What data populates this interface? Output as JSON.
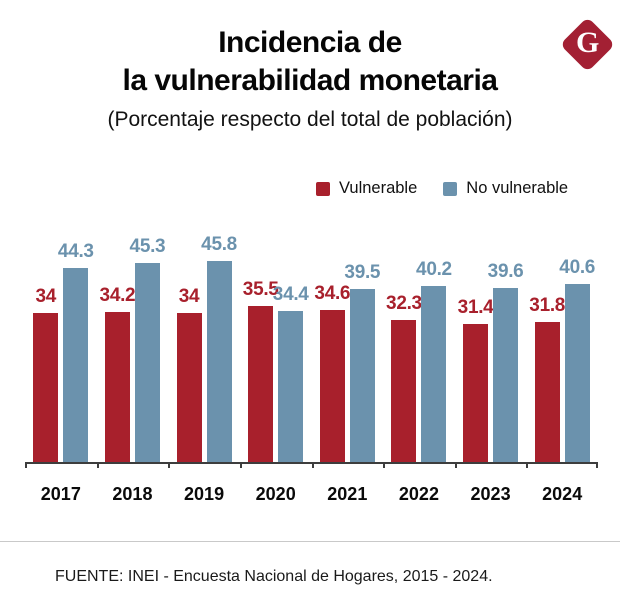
{
  "logo": {
    "letter": "G",
    "color": "#a32033"
  },
  "title": {
    "line1": "Incidencia de",
    "line2": "la vulnerabilidad monetaria"
  },
  "subtitle": "(Porcentaje respecto del total de población)",
  "legend": [
    {
      "label": "Vulnerable",
      "color": "#a8202c"
    },
    {
      "label": "No vulnerable",
      "color": "#6b92ad"
    }
  ],
  "source": "FUENTE: INEI - Encuesta Nacional de Hogares, 2015 - 2024.",
  "chart_data": {
    "type": "bar",
    "title": "Incidencia de la vulnerabilidad monetaria",
    "subtitle": "(Porcentaje respecto del total de población)",
    "categories": [
      "2017",
      "2018",
      "2019",
      "2020",
      "2021",
      "2022",
      "2023",
      "2024"
    ],
    "series": [
      {
        "name": "Vulnerable",
        "color": "#a8202c",
        "values": [
          34,
          34.2,
          34,
          35.5,
          34.6,
          32.3,
          31.4,
          31.8
        ]
      },
      {
        "name": "No vulnerable",
        "color": "#6b92ad",
        "values": [
          44.3,
          45.3,
          45.8,
          34.4,
          39.5,
          40.2,
          39.6,
          40.6
        ]
      }
    ],
    "xlabel": "",
    "ylabel": "",
    "ylim": [
      0,
      46
    ],
    "grid": false,
    "value_labels": true,
    "legend_position": "top-right"
  }
}
